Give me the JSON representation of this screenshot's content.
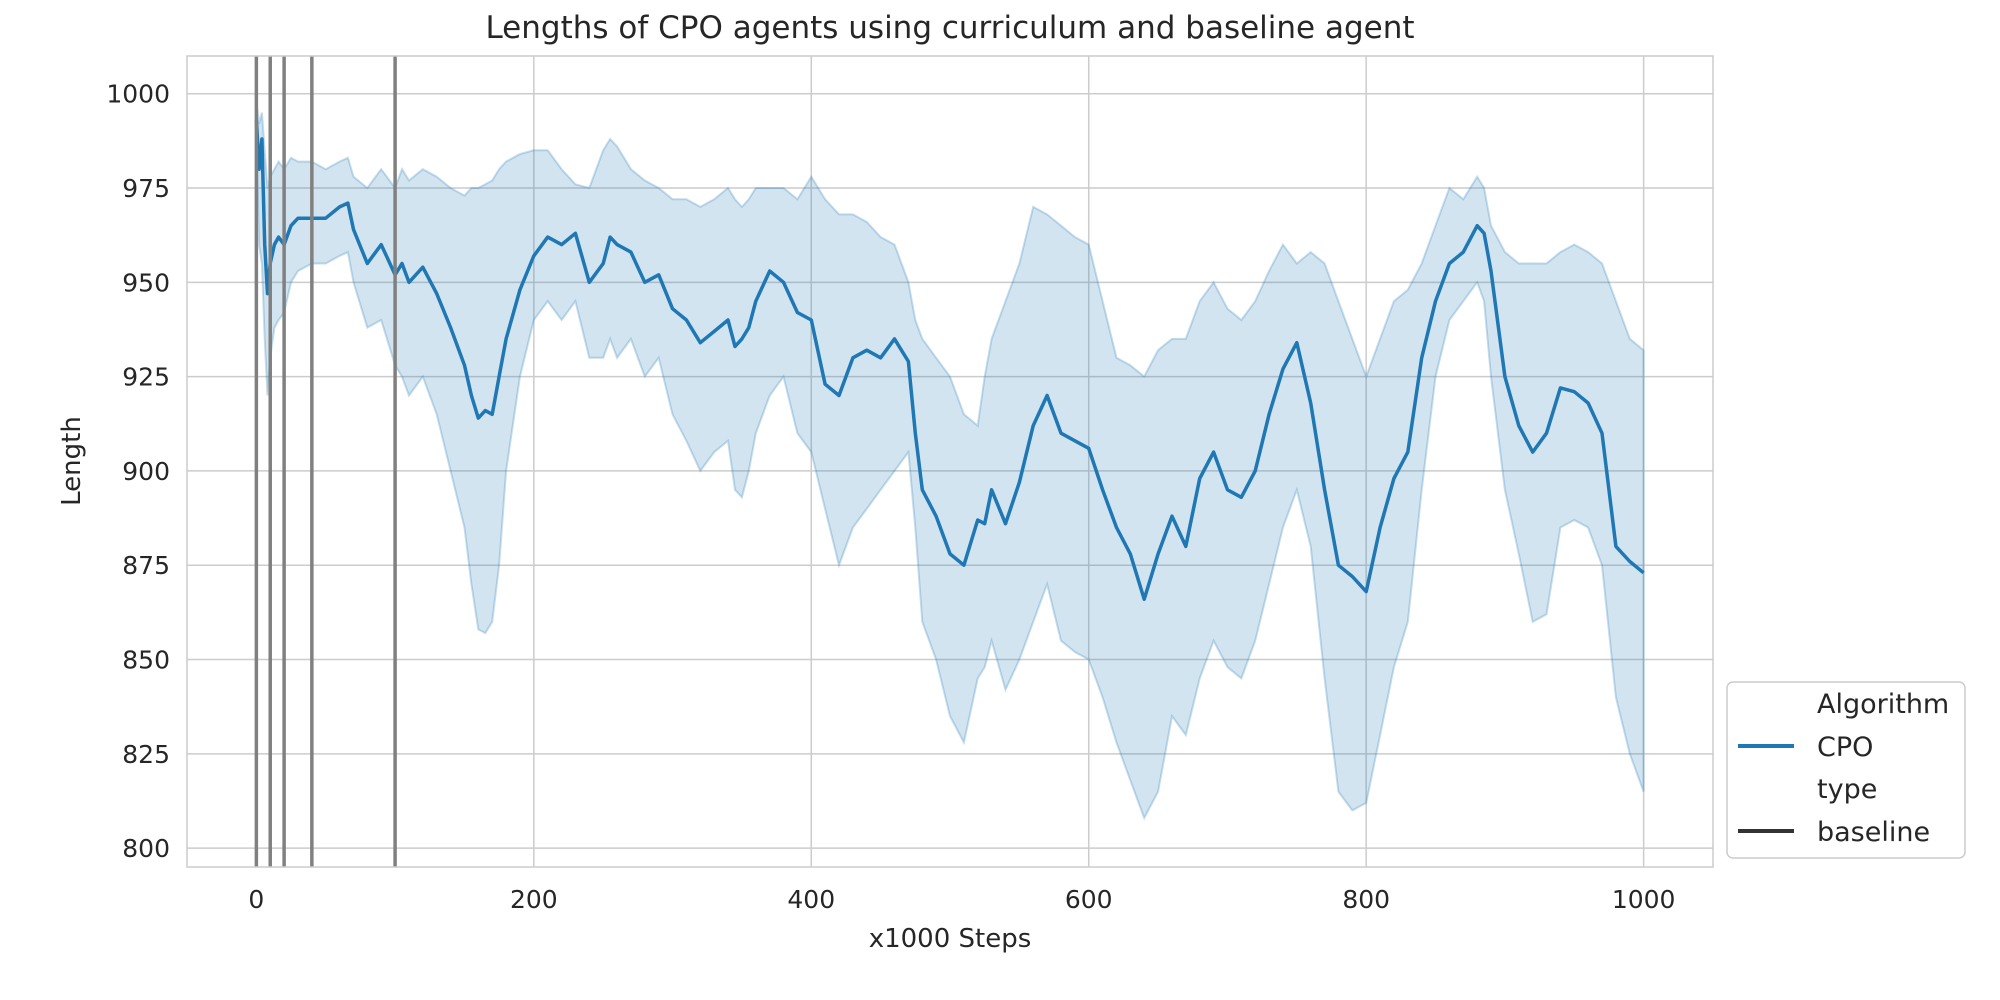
{
  "chart_data": {
    "type": "line",
    "title": "Lengths of CPO agents using curriculum and baseline agent",
    "xlabel": "x1000 Steps",
    "ylabel": "Length",
    "xlim": [
      -50,
      1050
    ],
    "ylim": [
      795,
      1010
    ],
    "xticks": [
      0,
      200,
      400,
      600,
      800,
      1000
    ],
    "yticks": [
      800,
      825,
      850,
      875,
      900,
      925,
      950,
      975,
      1000
    ],
    "grid": true,
    "legend_position": "bottom-right",
    "legend": {
      "groups": [
        {
          "header": "Algorithm",
          "entries": [
            {
              "label": "CPO",
              "style": "line",
              "color": "#1f77b4"
            }
          ]
        },
        {
          "header": "type",
          "entries": [
            {
              "label": "baseline",
              "style": "line",
              "color": "#333333"
            }
          ]
        }
      ]
    },
    "vertical_lines": {
      "x": [
        0,
        10,
        20,
        40,
        100
      ],
      "color": "#808080"
    },
    "series": [
      {
        "name": "CPO",
        "color": "#1f77b4",
        "band_color": "#1f77b4",
        "x": [
          0,
          2,
          4,
          6,
          8,
          10,
          13,
          16,
          20,
          25,
          30,
          40,
          50,
          60,
          66,
          70,
          80,
          90,
          100,
          105,
          110,
          120,
          130,
          140,
          150,
          155,
          160,
          165,
          170,
          175,
          180,
          190,
          200,
          210,
          220,
          230,
          240,
          250,
          255,
          260,
          270,
          280,
          290,
          300,
          310,
          320,
          330,
          340,
          345,
          350,
          355,
          360,
          370,
          380,
          390,
          400,
          410,
          420,
          430,
          440,
          450,
          460,
          470,
          475,
          480,
          490,
          500,
          510,
          520,
          525,
          530,
          540,
          550,
          560,
          570,
          580,
          590,
          600,
          610,
          620,
          630,
          640,
          650,
          660,
          670,
          680,
          690,
          700,
          710,
          720,
          730,
          740,
          750,
          760,
          770,
          780,
          790,
          800,
          810,
          820,
          830,
          840,
          850,
          860,
          870,
          880,
          885,
          890,
          900,
          910,
          920,
          930,
          940,
          950,
          960,
          970,
          980,
          990,
          1000
        ],
        "mean": [
          993,
          980,
          988,
          960,
          947,
          955,
          960,
          962,
          960,
          965,
          967,
          967,
          967,
          970,
          971,
          964,
          955,
          960,
          952,
          955,
          950,
          954,
          947,
          938,
          928,
          920,
          914,
          916,
          915,
          925,
          935,
          948,
          957,
          962,
          960,
          963,
          950,
          955,
          962,
          960,
          958,
          950,
          952,
          943,
          940,
          934,
          937,
          940,
          933,
          935,
          938,
          945,
          953,
          950,
          942,
          940,
          923,
          920,
          930,
          932,
          930,
          935,
          929,
          910,
          895,
          888,
          878,
          875,
          887,
          886,
          895,
          886,
          897,
          912,
          920,
          910,
          908,
          906,
          895,
          885,
          878,
          866,
          878,
          888,
          880,
          898,
          905,
          895,
          893,
          900,
          915,
          927,
          934,
          918,
          895,
          875,
          872,
          868,
          885,
          898,
          905,
          930,
          945,
          955,
          958,
          965,
          963,
          953,
          925,
          912,
          905,
          910,
          922,
          921,
          918,
          910,
          880,
          876,
          873
        ],
        "upper": [
          998,
          992,
          995,
          985,
          975,
          978,
          980,
          982,
          980,
          983,
          982,
          982,
          980,
          982,
          983,
          978,
          975,
          980,
          975,
          980,
          977,
          980,
          978,
          975,
          973,
          975,
          975,
          976,
          977,
          980,
          982,
          984,
          985,
          985,
          980,
          976,
          975,
          985,
          988,
          986,
          980,
          977,
          975,
          972,
          972,
          970,
          972,
          975,
          972,
          970,
          972,
          975,
          975,
          975,
          972,
          978,
          972,
          968,
          968,
          966,
          962,
          960,
          950,
          940,
          935,
          930,
          925,
          915,
          912,
          925,
          935,
          945,
          955,
          970,
          968,
          965,
          962,
          960,
          945,
          930,
          928,
          925,
          932,
          935,
          935,
          945,
          950,
          943,
          940,
          945,
          953,
          960,
          955,
          958,
          955,
          945,
          935,
          925,
          935,
          945,
          948,
          955,
          965,
          975,
          972,
          978,
          975,
          965,
          958,
          955,
          955,
          955,
          958,
          960,
          958,
          955,
          945,
          935,
          932
        ],
        "lower": [
          990,
          960,
          955,
          935,
          920,
          930,
          938,
          940,
          942,
          950,
          953,
          955,
          955,
          957,
          958,
          950,
          938,
          940,
          928,
          925,
          920,
          925,
          915,
          900,
          885,
          870,
          858,
          857,
          860,
          875,
          900,
          925,
          940,
          945,
          940,
          945,
          930,
          930,
          935,
          930,
          935,
          925,
          930,
          915,
          908,
          900,
          905,
          908,
          895,
          893,
          900,
          910,
          920,
          925,
          910,
          905,
          890,
          875,
          885,
          890,
          895,
          900,
          905,
          885,
          860,
          850,
          835,
          828,
          845,
          848,
          855,
          842,
          850,
          860,
          870,
          855,
          852,
          850,
          840,
          828,
          818,
          808,
          815,
          835,
          830,
          845,
          855,
          848,
          845,
          855,
          870,
          885,
          895,
          880,
          845,
          815,
          810,
          812,
          830,
          848,
          860,
          895,
          925,
          940,
          945,
          950,
          945,
          925,
          895,
          878,
          860,
          862,
          885,
          887,
          885,
          875,
          840,
          825,
          815
        ]
      }
    ]
  }
}
